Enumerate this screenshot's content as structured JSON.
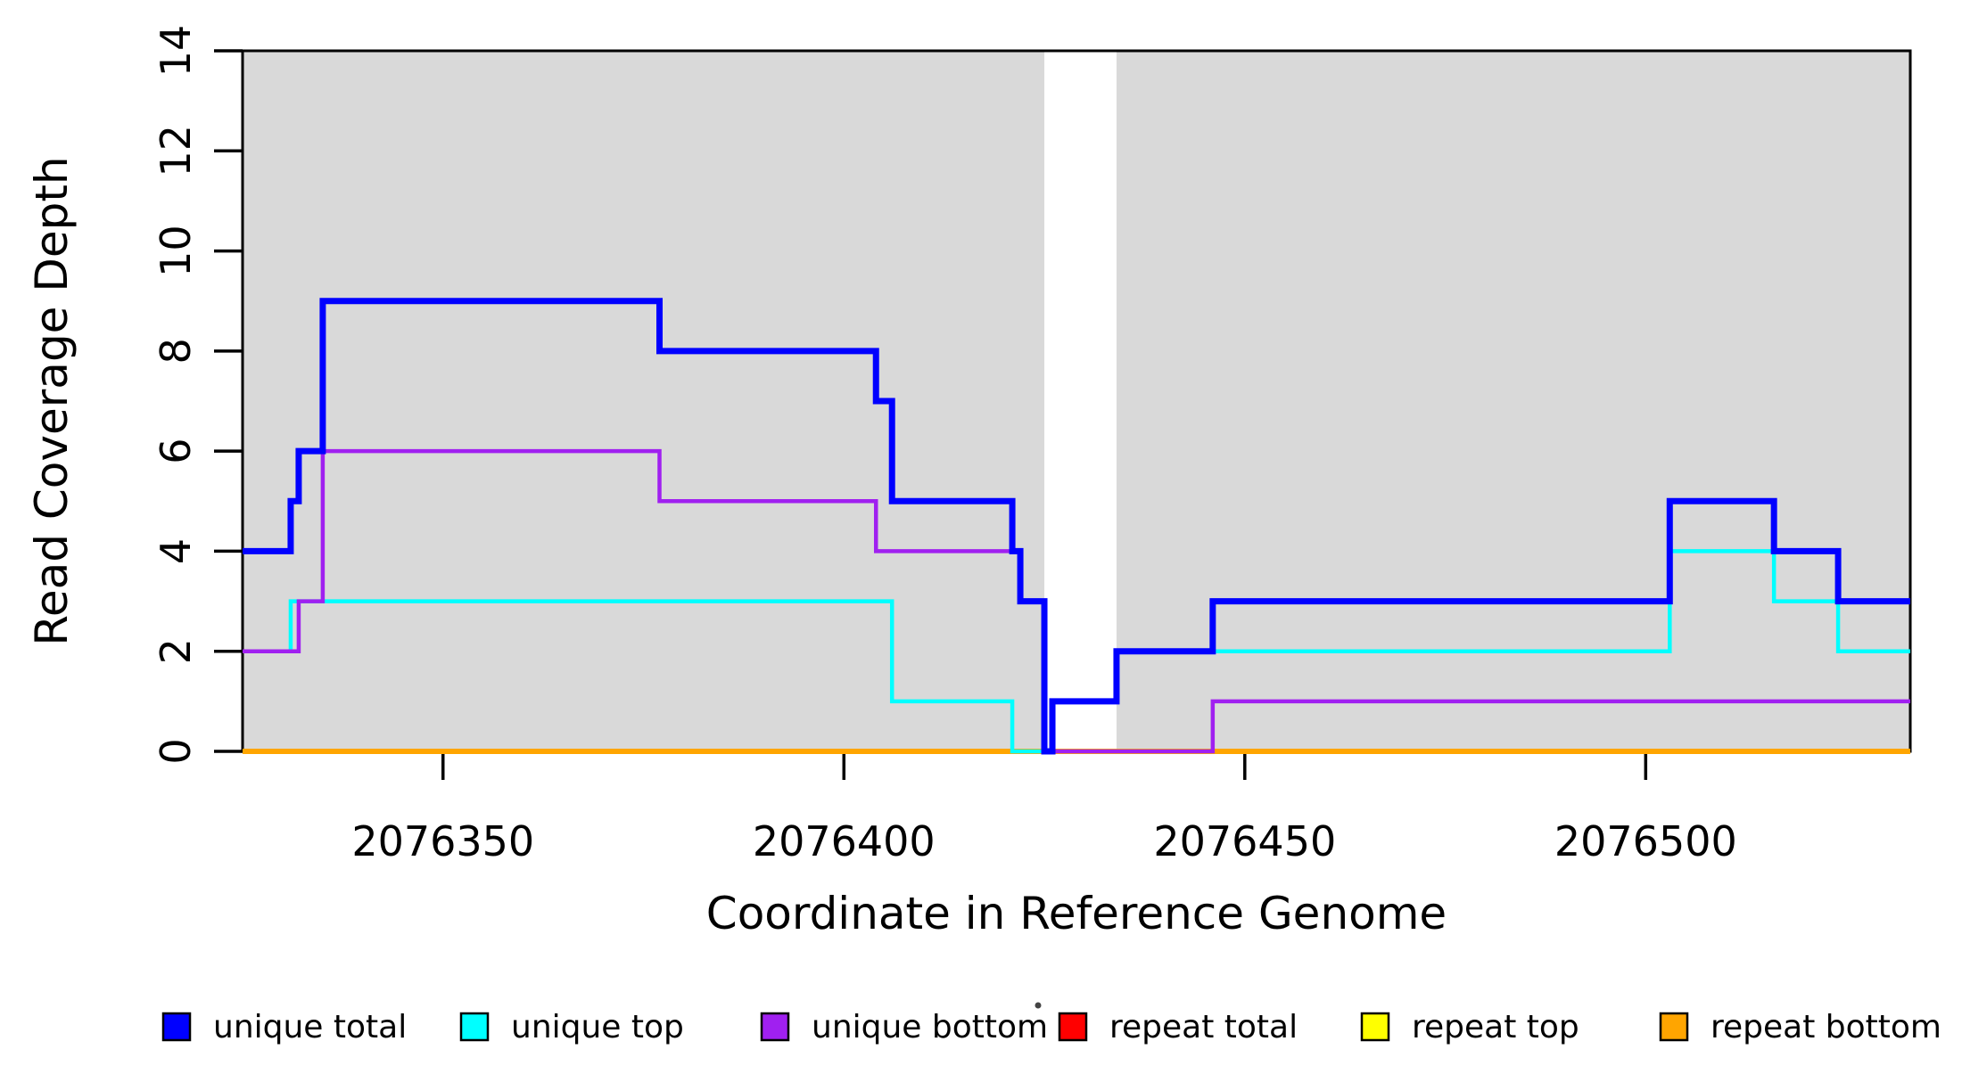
{
  "axes": {
    "x_label": "Coordinate in Reference Genome",
    "y_label": "Read Coverage Depth"
  },
  "chart_data": {
    "type": "line",
    "subtype": "step",
    "title": "",
    "xlabel": "Coordinate in Reference Genome",
    "ylabel": "Read Coverage Depth",
    "xlim": [
      2076325,
      2076533
    ],
    "ylim": [
      0,
      14
    ],
    "x_ticks": [
      {
        "value": 2076350,
        "label": "2076350"
      },
      {
        "value": 2076400,
        "label": "2076400"
      },
      {
        "value": 2076450,
        "label": "2076450"
      },
      {
        "value": 2076500,
        "label": "2076500"
      }
    ],
    "y_ticks": [
      {
        "value": 0,
        "label": "0"
      },
      {
        "value": 2,
        "label": "2"
      },
      {
        "value": 4,
        "label": "4"
      },
      {
        "value": 6,
        "label": "6"
      },
      {
        "value": 8,
        "label": "8"
      },
      {
        "value": 10,
        "label": "10"
      },
      {
        "value": 12,
        "label": "12"
      },
      {
        "value": 14,
        "label": "14"
      }
    ],
    "grid": false,
    "background_shading": {
      "color": "#d9d9d9",
      "regions": [
        [
          2076325,
          2076425
        ],
        [
          2076434,
          2076533
        ]
      ]
    },
    "series": [
      {
        "name": "unique total",
        "color": "#0000ff",
        "line_width": 7,
        "steps": [
          [
            2076325,
            4
          ],
          [
            2076331,
            5
          ],
          [
            2076332,
            6
          ],
          [
            2076335,
            9
          ],
          [
            2076377,
            8
          ],
          [
            2076404,
            7
          ],
          [
            2076406,
            5
          ],
          [
            2076421,
            4
          ],
          [
            2076422,
            3
          ],
          [
            2076425,
            0
          ],
          [
            2076426,
            1
          ],
          [
            2076434,
            2
          ],
          [
            2076446,
            3
          ],
          [
            2076503,
            5
          ],
          [
            2076516,
            4
          ],
          [
            2076524,
            3
          ]
        ]
      },
      {
        "name": "unique top",
        "color": "#00ffff",
        "line_width": 4.5,
        "steps": [
          [
            2076325,
            2
          ],
          [
            2076331,
            3
          ],
          [
            2076406,
            1
          ],
          [
            2076421,
            0
          ],
          [
            2076426,
            1
          ],
          [
            2076434,
            2
          ],
          [
            2076503,
            4
          ],
          [
            2076516,
            3
          ],
          [
            2076524,
            2
          ]
        ]
      },
      {
        "name": "unique bottom",
        "color": "#a020f0",
        "line_width": 4.5,
        "steps": [
          [
            2076325,
            2
          ],
          [
            2076332,
            3
          ],
          [
            2076335,
            6
          ],
          [
            2076377,
            5
          ],
          [
            2076404,
            4
          ],
          [
            2076422,
            3
          ],
          [
            2076425,
            0
          ],
          [
            2076446,
            1
          ]
        ]
      },
      {
        "name": "repeat total",
        "color": "#ff0000",
        "line_width": 4,
        "steps": [
          [
            2076325,
            0
          ]
        ]
      },
      {
        "name": "repeat top",
        "color": "#ffff00",
        "line_width": 4,
        "steps": [
          [
            2076325,
            0
          ]
        ]
      },
      {
        "name": "repeat bottom",
        "color": "#ffa500",
        "line_width": 6,
        "steps": [
          [
            2076325,
            0
          ]
        ]
      }
    ],
    "draw_order": [
      "repeat total",
      "repeat top",
      "repeat bottom",
      "unique top",
      "unique bottom",
      "unique total"
    ],
    "legend_position": "bottom"
  },
  "legend": {
    "items": [
      {
        "label": "unique total",
        "color": "#0000ff"
      },
      {
        "label": "unique top",
        "color": "#00ffff"
      },
      {
        "label": "unique bottom",
        "color": "#a020f0"
      },
      {
        "label": "repeat total",
        "color": "#ff0000"
      },
      {
        "label": "repeat top",
        "color": "#ffff00"
      },
      {
        "label": "repeat bottom",
        "color": "#ffa500"
      }
    ]
  }
}
